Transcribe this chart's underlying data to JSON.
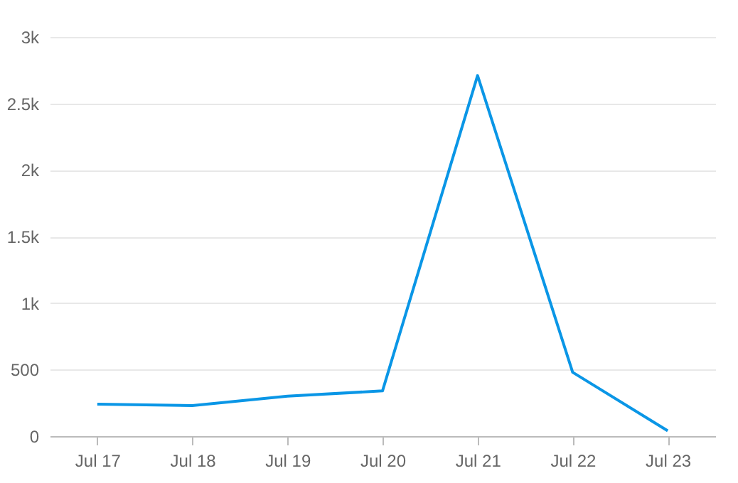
{
  "chart_data": {
    "type": "line",
    "categories": [
      "Jul 17",
      "Jul 18",
      "Jul 19",
      "Jul 20",
      "Jul 21",
      "Jul 22",
      "Jul 23"
    ],
    "series": [
      {
        "color": "#0a96e6",
        "values": [
          240,
          230,
          300,
          340,
          2710,
          480,
          40
        ]
      }
    ],
    "ylim": [
      0,
      3000
    ],
    "yticks": [
      0,
      500,
      {
        "value": 1000,
        "label": "1k"
      },
      {
        "value": 1500,
        "label": "1.5k"
      },
      {
        "value": 2000,
        "label": "2k"
      },
      {
        "value": 2500,
        "label": "2.5k"
      },
      {
        "value": 3000,
        "label": "3k"
      }
    ],
    "grid": "y",
    "marker": "none",
    "line_style": "solid"
  }
}
